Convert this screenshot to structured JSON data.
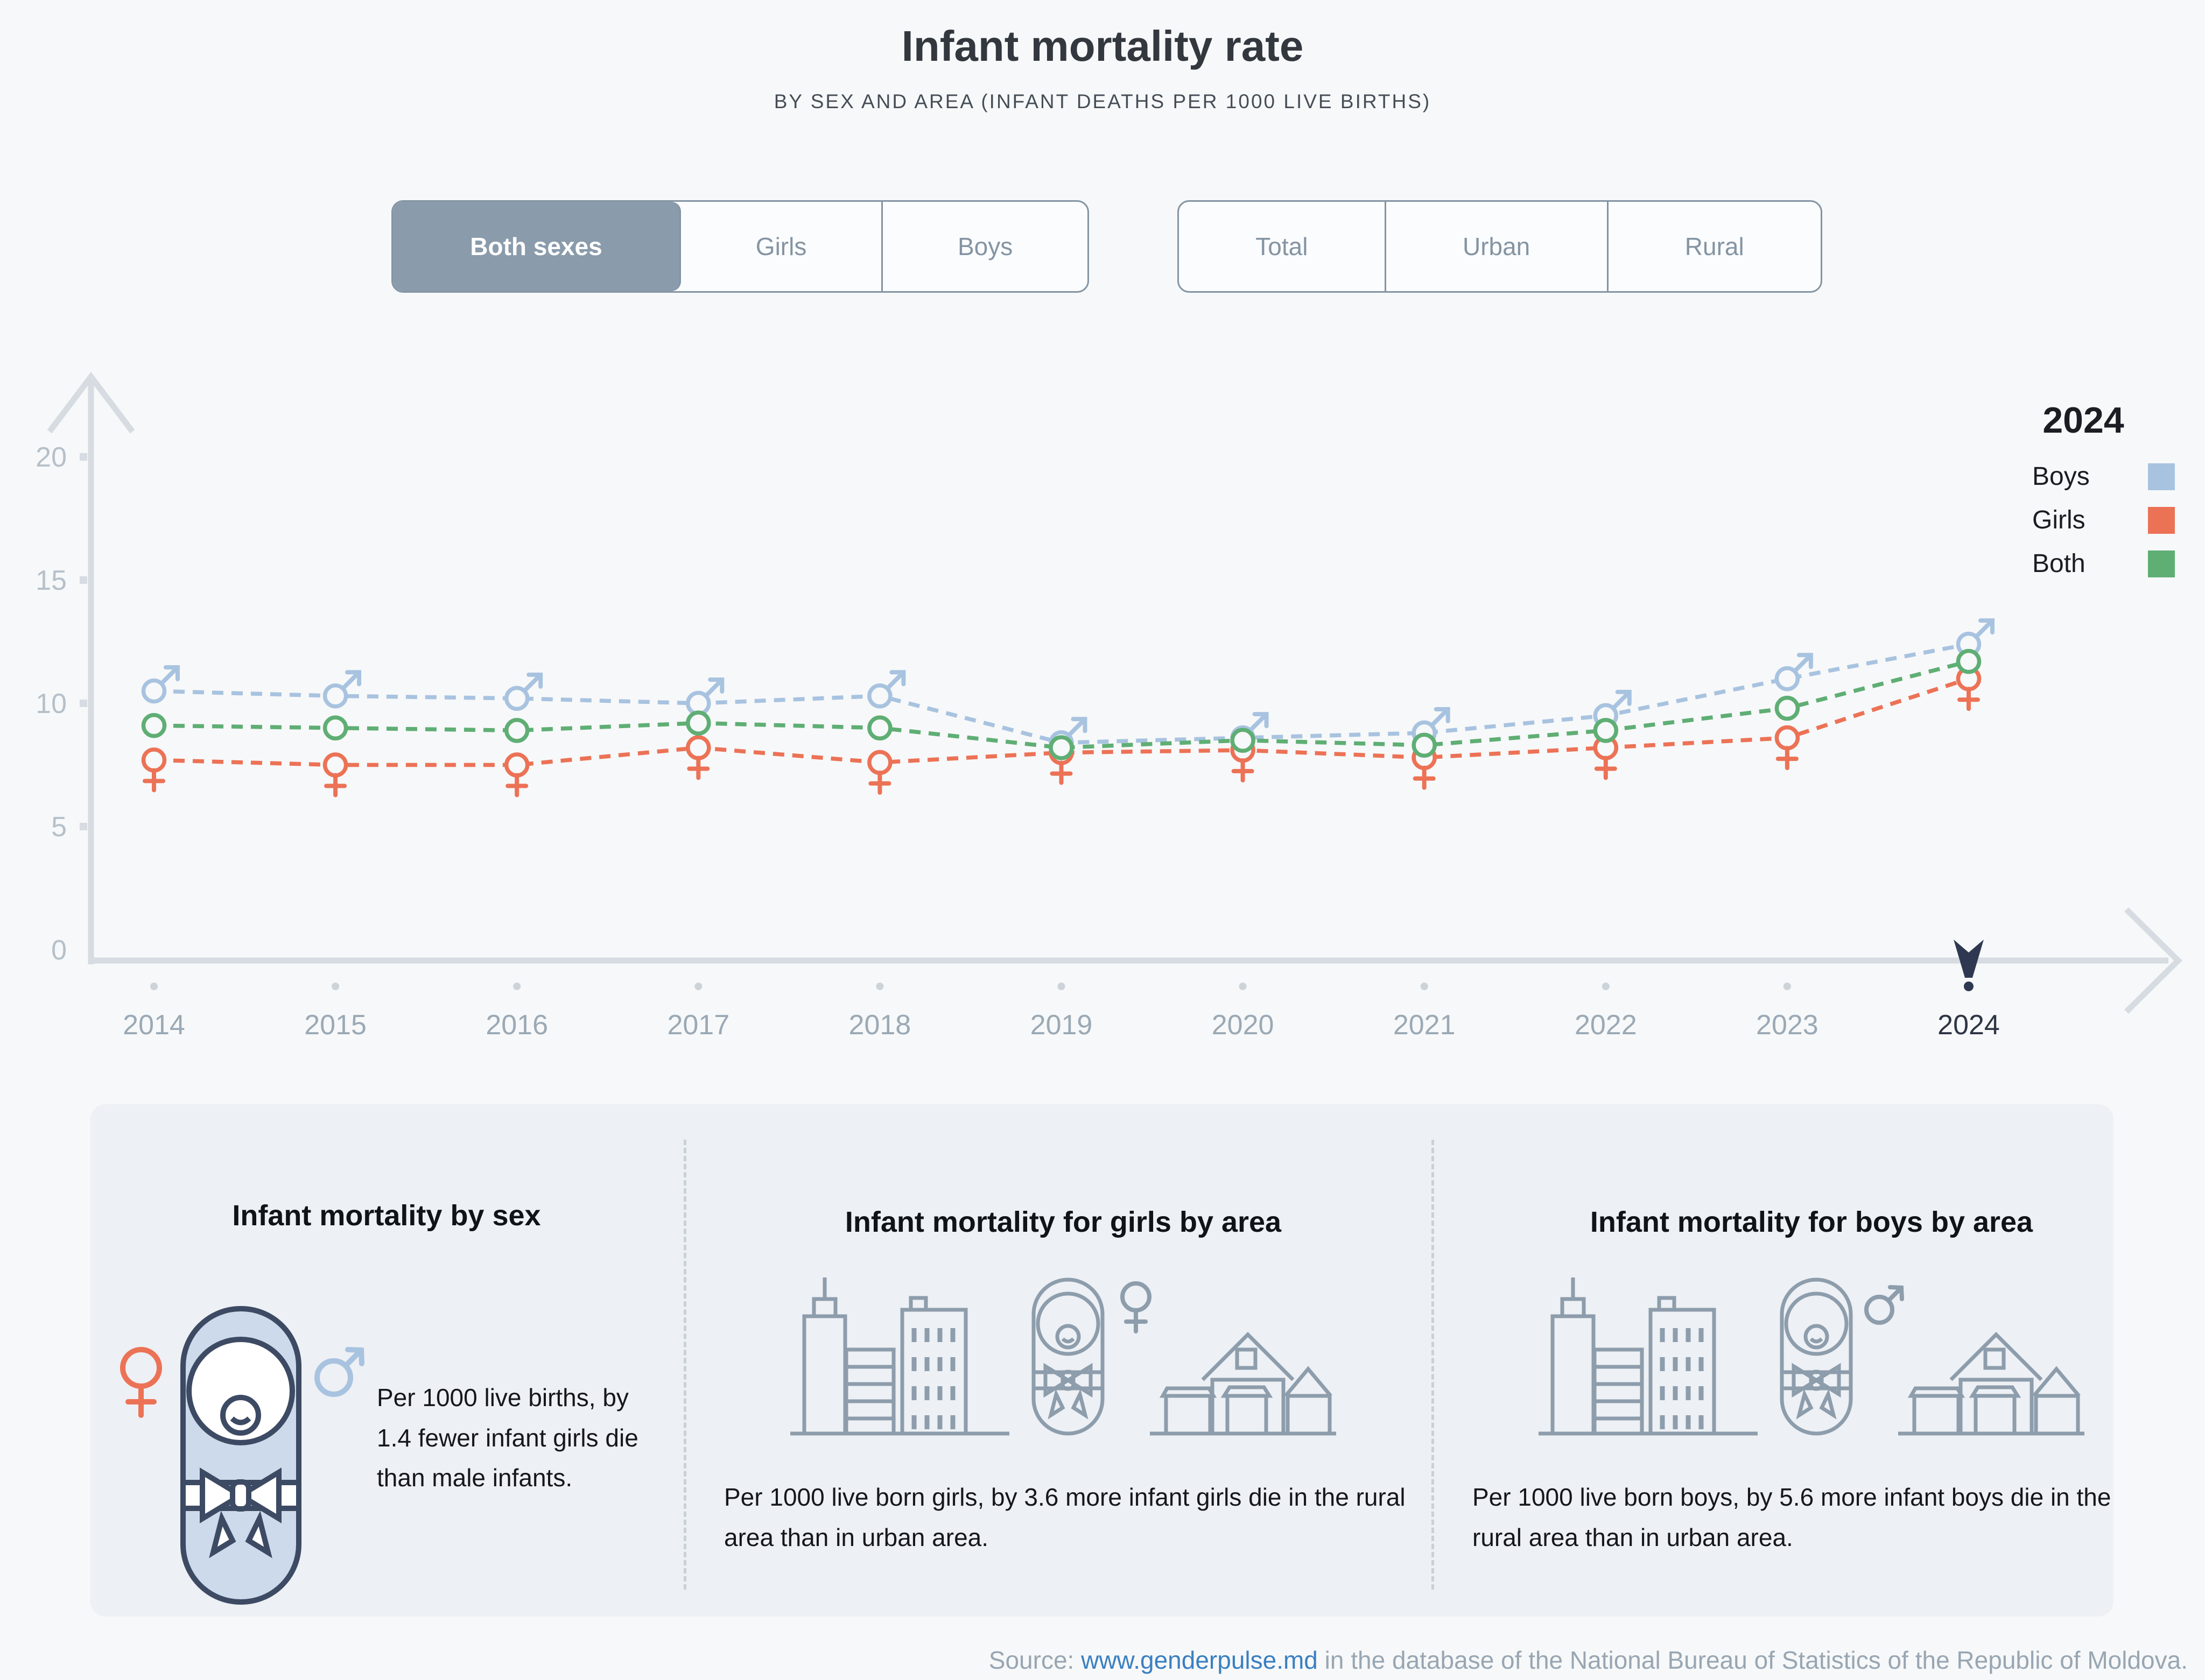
{
  "header": {
    "title": "Infant mortality rate",
    "subtitle": "BY SEX AND AREA (INFANT DEATHS PER 1000 LIVE BIRTHS)"
  },
  "toggles": {
    "sex": {
      "options": [
        "Both sexes",
        "Girls",
        "Boys"
      ],
      "selected": "Both sexes"
    },
    "area": {
      "options": [
        "Total",
        "Urban",
        "Rural"
      ],
      "selected": null
    }
  },
  "legend": {
    "title": "2024",
    "position": "right",
    "items": [
      {
        "label": "Boys",
        "color": "#a8c3e0"
      },
      {
        "label": "Girls",
        "color": "#ec7256"
      },
      {
        "label": "Both",
        "color": "#5fae74"
      }
    ]
  },
  "chart_data": {
    "type": "line",
    "title": "Infant mortality rate",
    "xlabel": "",
    "ylabel": "",
    "x": [
      2014,
      2015,
      2016,
      2017,
      2018,
      2019,
      2020,
      2021,
      2022,
      2023,
      2024
    ],
    "series": [
      {
        "name": "Boys",
        "color": "#a8c3e0",
        "marker": "male",
        "values": [
          10.5,
          10.3,
          10.2,
          10.0,
          10.3,
          8.4,
          8.6,
          8.8,
          9.5,
          11.0,
          12.4
        ]
      },
      {
        "name": "Girls",
        "color": "#ec7256",
        "marker": "female",
        "values": [
          7.7,
          7.5,
          7.5,
          8.2,
          7.6,
          8.0,
          8.1,
          7.8,
          8.2,
          8.6,
          11.0
        ]
      },
      {
        "name": "Both",
        "color": "#5fae74",
        "marker": "circle",
        "values": [
          9.1,
          9.0,
          8.9,
          9.2,
          9.0,
          8.2,
          8.5,
          8.3,
          8.9,
          9.8,
          11.7
        ]
      }
    ],
    "ylim": [
      0,
      20
    ],
    "yticks": [
      0,
      5,
      10,
      15,
      20
    ],
    "line_style": "dashed",
    "grid": false,
    "highlighted_year": 2024,
    "axis_color": "#d6dce1",
    "ytick_label_color": "#b6c0c9",
    "xtick_label_color": "#9aa9b5",
    "highlight_color": "#2e3951",
    "plot_bg": "#f7f8f9"
  },
  "cards": [
    {
      "title": "Infant mortality by sex",
      "text": "Per 1000 live births, by 1.4 fewer infant girls die than male infants.",
      "icons": [
        "female-symbol-icon",
        "swaddled-baby-icon",
        "male-symbol-icon"
      ]
    },
    {
      "title": "Infant mortality for girls by area",
      "text": "Per 1000 live born girls, by 3.6 more infant girls die in the rural area than in urban area.",
      "icons": [
        "city-buildings-icon",
        "swaddled-baby-icon",
        "female-symbol-icon",
        "village-house-icon"
      ]
    },
    {
      "title": "Infant mortality for boys by area",
      "text": "Per 1000 live born boys, by 5.6 more infant boys die in the rural area than in urban area.",
      "icons": [
        "city-buildings-icon",
        "swaddled-baby-icon",
        "male-symbol-icon",
        "village-house-icon"
      ]
    }
  ],
  "source": {
    "label": "Source: ",
    "link_text": "www.genderpulse.md",
    "rest": " in the database of the National Bureau of Statistics of the Republic of Moldova."
  }
}
